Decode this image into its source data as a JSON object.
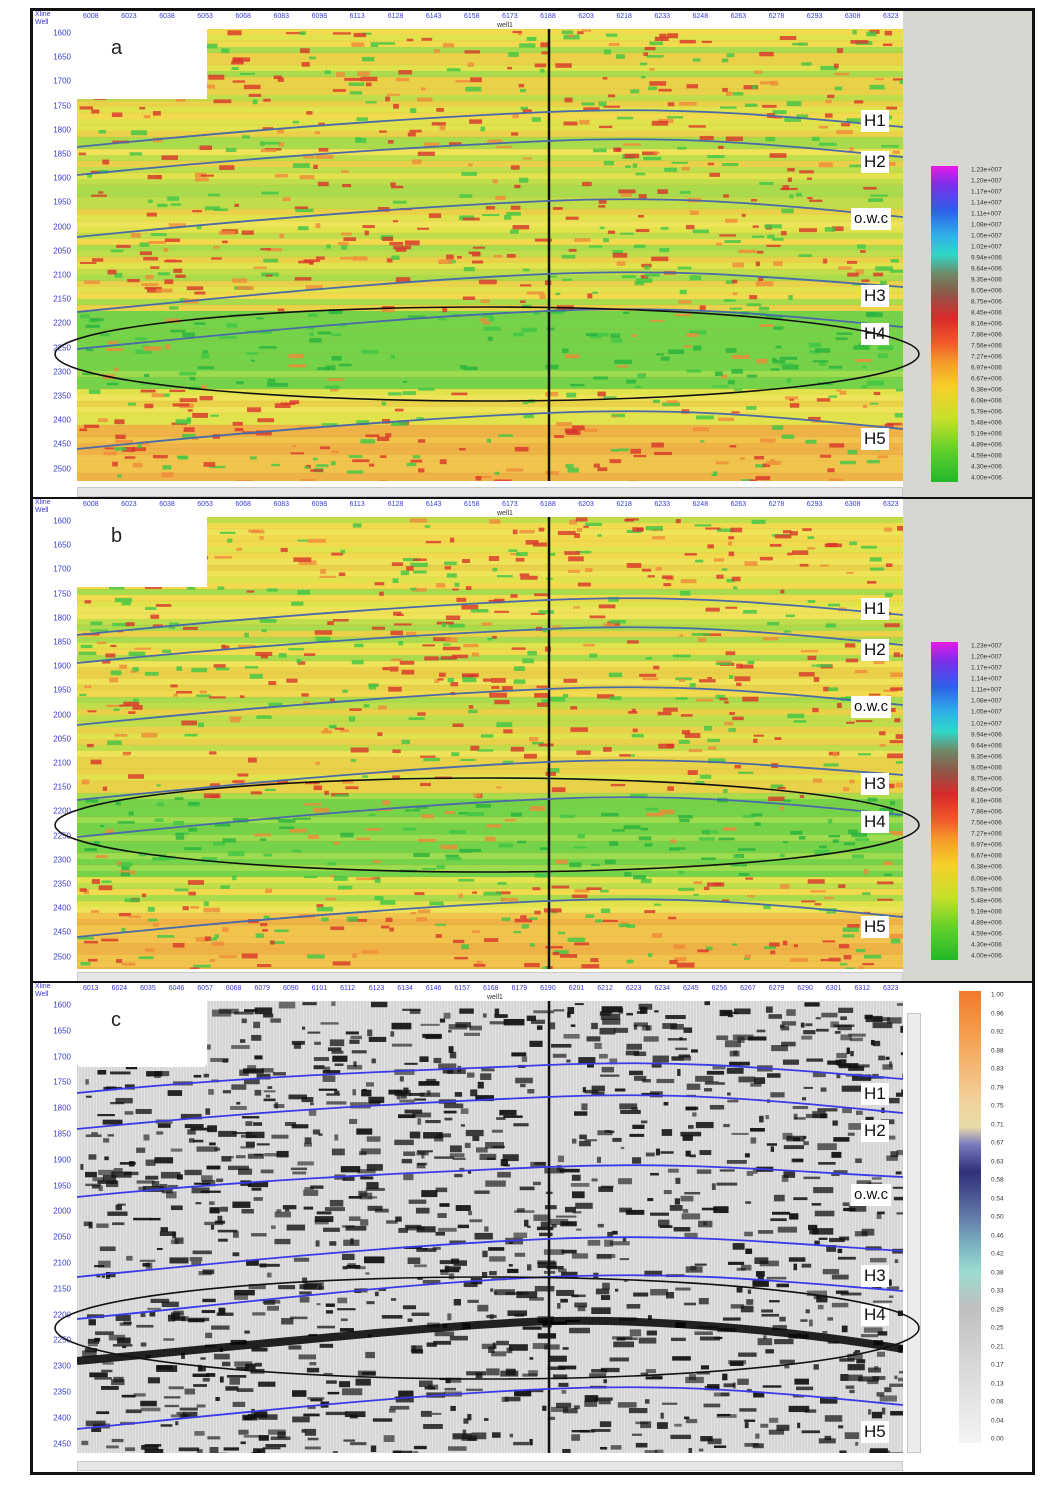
{
  "panels": [
    {
      "id": "a",
      "letter": "a",
      "xline_label": "Xline",
      "well_row_label": "Well",
      "well_name": "well1",
      "xticks": [
        "6008",
        "6023",
        "6038",
        "6053",
        "6068",
        "6083",
        "6098",
        "6113",
        "6128",
        "6143",
        "6158",
        "6173",
        "6188",
        "6203",
        "6218",
        "6233",
        "6248",
        "6263",
        "6278",
        "6293",
        "6308",
        "6323"
      ],
      "yticks": [
        "1600",
        "1650",
        "1700",
        "1750",
        "1800",
        "1850",
        "1900",
        "1950",
        "2000",
        "2050",
        "2100",
        "2150",
        "2200",
        "2250",
        "2300",
        "2350",
        "2400",
        "2450",
        "2500"
      ],
      "horizons": [
        "H1",
        "H2",
        "o.w.c",
        "H3",
        "H4",
        "H5"
      ],
      "colorbar": [
        "1.23e+007",
        "1.20e+007",
        "1.17e+007",
        "1.14e+007",
        "1.11e+007",
        "1.08e+007",
        "1.05e+007",
        "1.02e+007",
        "9.94e+006",
        "9.64e+006",
        "9.35e+006",
        "9.05e+006",
        "8.75e+006",
        "8.45e+006",
        "8.16e+006",
        "7.86e+006",
        "7.56e+006",
        "7.27e+006",
        "6.97e+006",
        "6.67e+006",
        "6.38e+006",
        "6.08e+006",
        "5.78e+006",
        "5.48e+006",
        "5.19e+006",
        "4.89e+006",
        "4.59e+006",
        "4.30e+006",
        "4.00e+006"
      ]
    },
    {
      "id": "b",
      "letter": "b",
      "xline_label": "Xline",
      "well_row_label": "Well",
      "well_name": "well1",
      "xticks": [
        "6008",
        "6023",
        "6038",
        "6053",
        "6068",
        "6083",
        "6098",
        "6113",
        "6128",
        "6143",
        "6158",
        "6173",
        "6188",
        "6203",
        "6218",
        "6233",
        "6248",
        "6263",
        "6278",
        "6293",
        "6308",
        "6323"
      ],
      "yticks": [
        "1600",
        "1650",
        "1700",
        "1750",
        "1800",
        "1850",
        "1900",
        "1950",
        "2000",
        "2050",
        "2100",
        "2150",
        "2200",
        "2250",
        "2300",
        "2350",
        "2400",
        "2450",
        "2500"
      ],
      "horizons": [
        "H1",
        "H2",
        "o.w.c",
        "H3",
        "H4",
        "H5"
      ],
      "colorbar": [
        "1.23e+007",
        "1.20e+007",
        "1.17e+007",
        "1.14e+007",
        "1.11e+007",
        "1.08e+007",
        "1.05e+007",
        "1.02e+007",
        "9.94e+006",
        "9.64e+006",
        "9.35e+006",
        "9.05e+006",
        "8.75e+006",
        "8.45e+006",
        "8.16e+006",
        "7.86e+006",
        "7.56e+006",
        "7.27e+006",
        "6.97e+006",
        "6.67e+006",
        "6.38e+006",
        "6.08e+006",
        "5.78e+006",
        "5.48e+006",
        "5.19e+006",
        "4.89e+006",
        "4.59e+006",
        "4.30e+006",
        "4.00e+006"
      ]
    },
    {
      "id": "c",
      "letter": "c",
      "xline_label": "Xline",
      "well_row_label": "Well",
      "well_name": "well1",
      "xticks": [
        "6013",
        "6024",
        "6035",
        "6046",
        "6057",
        "6068",
        "6079",
        "6090",
        "6101",
        "6112",
        "6123",
        "6134",
        "6146",
        "6157",
        "6168",
        "6179",
        "6190",
        "6201",
        "6212",
        "6223",
        "6234",
        "6245",
        "6256",
        "6267",
        "6279",
        "6290",
        "6301",
        "6312",
        "6323"
      ],
      "yticks": [
        "1600",
        "1650",
        "1700",
        "1750",
        "1800",
        "1850",
        "1900",
        "1950",
        "2000",
        "2050",
        "2100",
        "2150",
        "2200",
        "2250",
        "2300",
        "2350",
        "2400",
        "2450"
      ],
      "horizons": [
        "H1",
        "H2",
        "o.w.c",
        "H3",
        "H4",
        "H5"
      ],
      "colorbar": [
        "1.00",
        "0.96",
        "0.92",
        "0.88",
        "0.83",
        "0.79",
        "0.75",
        "0.71",
        "0.67",
        "0.63",
        "0.58",
        "0.54",
        "0.50",
        "0.46",
        "0.42",
        "0.38",
        "0.33",
        "0.29",
        "0.25",
        "0.21",
        "0.17",
        "0.13",
        "0.08",
        "0.04",
        "0.00"
      ]
    }
  ]
}
